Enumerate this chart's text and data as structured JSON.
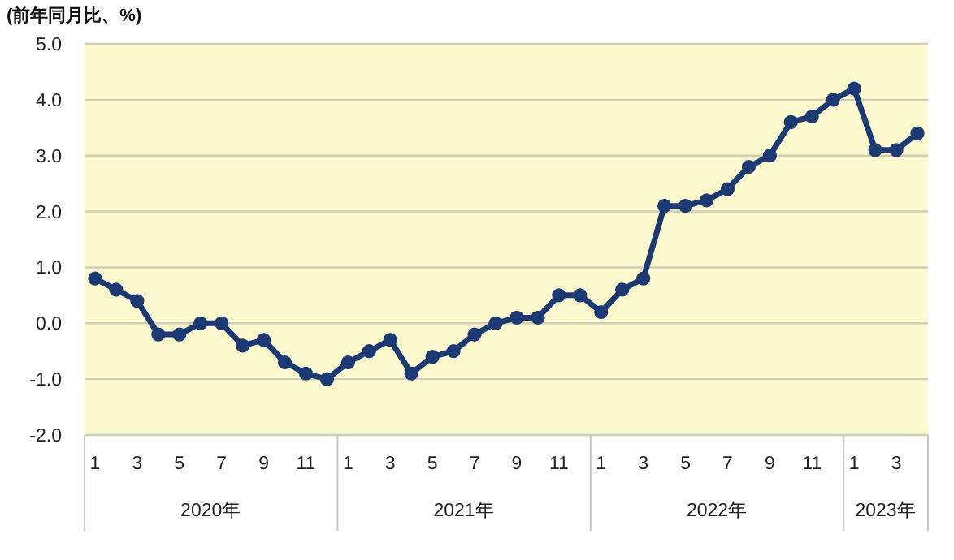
{
  "chart_data": {
    "type": "line",
    "ylabel": "(前年同月比、%)",
    "x": [
      "2020-01",
      "2020-02",
      "2020-03",
      "2020-04",
      "2020-05",
      "2020-06",
      "2020-07",
      "2020-08",
      "2020-09",
      "2020-10",
      "2020-11",
      "2020-12",
      "2021-01",
      "2021-02",
      "2021-03",
      "2021-04",
      "2021-05",
      "2021-06",
      "2021-07",
      "2021-08",
      "2021-09",
      "2021-10",
      "2021-11",
      "2021-12",
      "2022-01",
      "2022-02",
      "2022-03",
      "2022-04",
      "2022-05",
      "2022-06",
      "2022-07",
      "2022-08",
      "2022-09",
      "2022-10",
      "2022-11",
      "2022-12",
      "2023-01",
      "2023-02",
      "2023-03",
      "2023-04"
    ],
    "series": [
      {
        "color": "#1b3a73",
        "values": [
          0.8,
          0.6,
          0.4,
          -0.2,
          -0.2,
          0.0,
          0.0,
          -0.4,
          -0.3,
          -0.7,
          -0.9,
          -1.0,
          -0.7,
          -0.5,
          -0.3,
          -0.9,
          -0.6,
          -0.5,
          -0.2,
          0.0,
          0.1,
          0.1,
          0.5,
          0.5,
          0.2,
          0.6,
          0.8,
          2.1,
          2.1,
          2.2,
          2.4,
          2.8,
          3.0,
          3.6,
          3.7,
          4.0,
          4.2,
          3.1,
          3.1,
          3.4
        ]
      }
    ],
    "xlim": [
      "2019-12-16",
      "2023-04-16"
    ],
    "xticks": [
      {
        "value": "2020-01",
        "label": "1"
      },
      {
        "value": "2020-03",
        "label": "3"
      },
      {
        "value": "2020-05",
        "label": "5"
      },
      {
        "value": "2020-07",
        "label": "7"
      },
      {
        "value": "2020-09",
        "label": "9"
      },
      {
        "value": "2020-11",
        "label": "11"
      },
      {
        "value": "2021-01",
        "label": "1"
      },
      {
        "value": "2021-03",
        "label": "3"
      },
      {
        "value": "2021-05",
        "label": "5"
      },
      {
        "value": "2021-07",
        "label": "7"
      },
      {
        "value": "2021-09",
        "label": "9"
      },
      {
        "value": "2021-11",
        "label": "11"
      },
      {
        "value": "2022-01",
        "label": "1"
      },
      {
        "value": "2022-03",
        "label": "3"
      },
      {
        "value": "2022-05",
        "label": "5"
      },
      {
        "value": "2022-07",
        "label": "7"
      },
      {
        "value": "2022-09",
        "label": "9"
      },
      {
        "value": "2022-11",
        "label": "11"
      },
      {
        "value": "2023-01",
        "label": "1"
      },
      {
        "value": "2023-03",
        "label": "3"
      }
    ],
    "annotations": [
      "2020年",
      "2021年",
      "2022年",
      "2023年"
    ],
    "ylim": [
      -2,
      5
    ],
    "yticks": [
      {
        "value": -2,
        "label": "-2.0"
      },
      {
        "value": -1,
        "label": "-1.0"
      },
      {
        "value": 0,
        "label": "0.0"
      },
      {
        "value": 1,
        "label": "1.0"
      },
      {
        "value": 2,
        "label": "2.0"
      },
      {
        "value": 3,
        "label": "3.0"
      },
      {
        "value": 4,
        "label": "4.0"
      },
      {
        "value": 5,
        "label": "5.0"
      }
    ],
    "grid": "y",
    "marker": "circle",
    "line_style": "solid"
  }
}
